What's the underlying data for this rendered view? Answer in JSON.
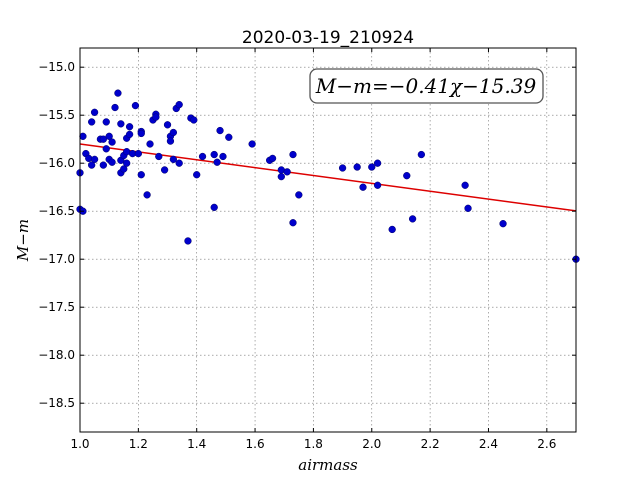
{
  "chart_data": {
    "type": "scatter",
    "title": "2020-03-19_210924",
    "xlabel": "airmass",
    "ylabel": "M−m",
    "xlim": [
      1.0,
      2.7
    ],
    "ylim": [
      -18.8,
      -14.8
    ],
    "y_inverted": false,
    "xticks": [
      1.0,
      1.2,
      1.4,
      1.6,
      1.8,
      2.0,
      2.2,
      2.4,
      2.6
    ],
    "xtick_labels": [
      "1.0",
      "1.2",
      "1.4",
      "1.6",
      "1.8",
      "2.0",
      "2.2",
      "2.4",
      "2.6"
    ],
    "yticks": [
      -15.0,
      -15.5,
      -16.0,
      -16.5,
      -17.0,
      -17.5,
      -18.0,
      -18.5
    ],
    "ytick_labels": [
      "−15.0",
      "−15.5",
      "−16.0",
      "−16.5",
      "−17.0",
      "−17.5",
      "−18.0",
      "−18.5"
    ],
    "grid": true,
    "annotation": "M−m=−0.41χ−15.39",
    "marker_color": "#0000cc",
    "fit_color": "#dd0000",
    "fit_line": {
      "slope": -0.41,
      "intercept": -15.39
    },
    "points": [
      [
        1.0,
        -16.1
      ],
      [
        1.0,
        -16.48
      ],
      [
        1.01,
        -16.5
      ],
      [
        1.01,
        -15.72
      ],
      [
        1.02,
        -15.9
      ],
      [
        1.03,
        -15.95
      ],
      [
        1.04,
        -15.57
      ],
      [
        1.04,
        -16.02
      ],
      [
        1.05,
        -15.47
      ],
      [
        1.05,
        -15.96
      ],
      [
        1.07,
        -15.75
      ],
      [
        1.08,
        -15.75
      ],
      [
        1.08,
        -16.02
      ],
      [
        1.09,
        -15.57
      ],
      [
        1.09,
        -15.85
      ],
      [
        1.1,
        -15.72
      ],
      [
        1.1,
        -15.96
      ],
      [
        1.11,
        -15.99
      ],
      [
        1.11,
        -15.78
      ],
      [
        1.12,
        -15.42
      ],
      [
        1.13,
        -15.27
      ],
      [
        1.14,
        -15.59
      ],
      [
        1.14,
        -15.97
      ],
      [
        1.14,
        -16.1
      ],
      [
        1.15,
        -16.06
      ],
      [
        1.15,
        -15.92
      ],
      [
        1.16,
        -15.74
      ],
      [
        1.16,
        -16.0
      ],
      [
        1.16,
        -15.88
      ],
      [
        1.17,
        -15.7
      ],
      [
        1.17,
        -15.62
      ],
      [
        1.18,
        -15.9
      ],
      [
        1.19,
        -15.4
      ],
      [
        1.2,
        -15.9
      ],
      [
        1.21,
        -15.67
      ],
      [
        1.21,
        -16.12
      ],
      [
        1.21,
        -15.69
      ],
      [
        1.23,
        -16.33
      ],
      [
        1.24,
        -15.8
      ],
      [
        1.25,
        -15.55
      ],
      [
        1.26,
        -15.49
      ],
      [
        1.26,
        -15.52
      ],
      [
        1.27,
        -15.93
      ],
      [
        1.29,
        -16.07
      ],
      [
        1.3,
        -15.6
      ],
      [
        1.31,
        -15.72
      ],
      [
        1.31,
        -15.77
      ],
      [
        1.32,
        -15.68
      ],
      [
        1.32,
        -15.96
      ],
      [
        1.33,
        -15.43
      ],
      [
        1.34,
        -15.39
      ],
      [
        1.34,
        -16.0
      ],
      [
        1.37,
        -16.81
      ],
      [
        1.38,
        -15.53
      ],
      [
        1.39,
        -15.55
      ],
      [
        1.4,
        -16.12
      ],
      [
        1.42,
        -15.93
      ],
      [
        1.46,
        -15.91
      ],
      [
        1.46,
        -16.46
      ],
      [
        1.47,
        -15.99
      ],
      [
        1.48,
        -15.66
      ],
      [
        1.49,
        -15.93
      ],
      [
        1.51,
        -15.73
      ],
      [
        1.59,
        -15.8
      ],
      [
        1.65,
        -15.97
      ],
      [
        1.66,
        -15.95
      ],
      [
        1.69,
        -16.07
      ],
      [
        1.69,
        -16.14
      ],
      [
        1.71,
        -16.09
      ],
      [
        1.73,
        -15.91
      ],
      [
        1.73,
        -16.62
      ],
      [
        1.75,
        -16.33
      ],
      [
        1.9,
        -16.05
      ],
      [
        1.95,
        -16.04
      ],
      [
        1.97,
        -16.25
      ],
      [
        2.0,
        -16.04
      ],
      [
        2.02,
        -16.23
      ],
      [
        2.02,
        -16.0
      ],
      [
        2.07,
        -16.69
      ],
      [
        2.12,
        -16.13
      ],
      [
        2.14,
        -16.58
      ],
      [
        2.17,
        -15.91
      ],
      [
        2.32,
        -16.23
      ],
      [
        2.33,
        -16.47
      ],
      [
        2.45,
        -16.63
      ],
      [
        2.7,
        -17.0
      ]
    ]
  }
}
